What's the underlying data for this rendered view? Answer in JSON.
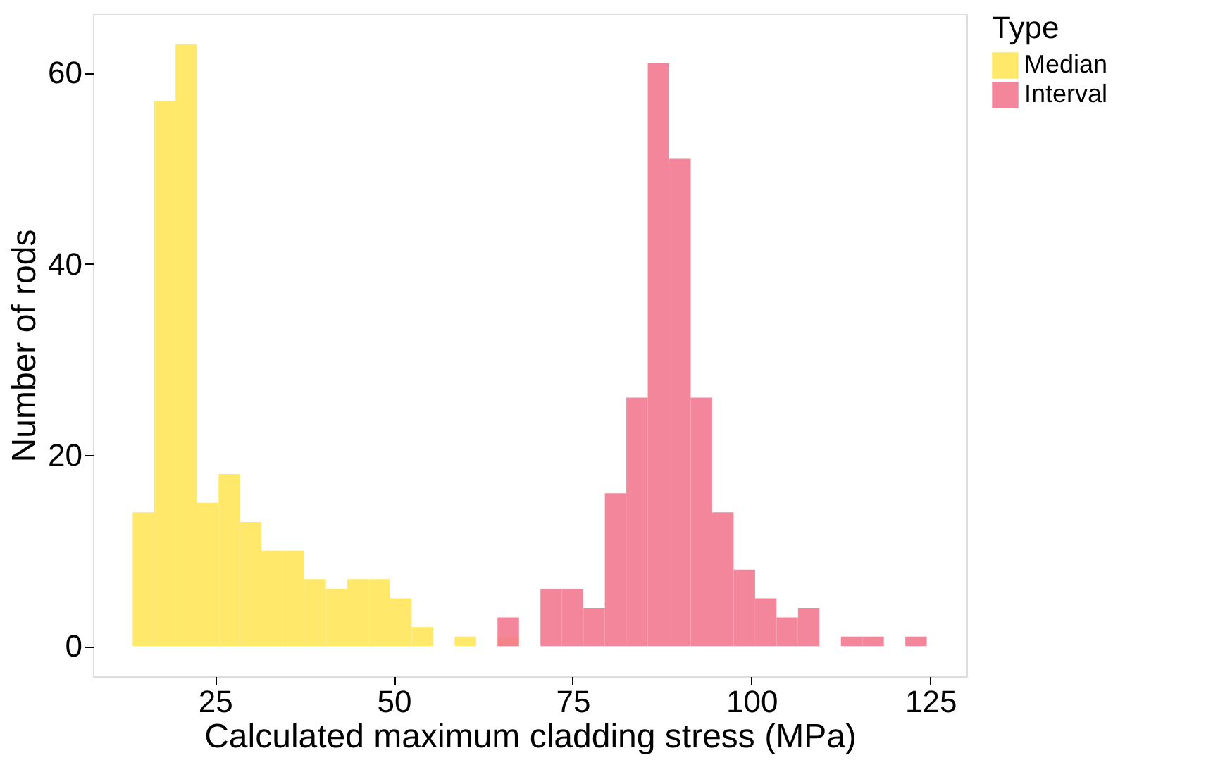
{
  "chart_data": {
    "type": "histogram",
    "xlabel": "Calculated maximum cladding stress (MPa)",
    "ylabel": "Number of rods",
    "legend_title": "Type",
    "bins": [
      13.5,
      16.5,
      19.5,
      22.5,
      25.5,
      28.5,
      31.5,
      34.5,
      37.5,
      40.5,
      43.5,
      46.5,
      49.5,
      52.5,
      55.5,
      58.5,
      61.5,
      64.5,
      67.5,
      70.5,
      73.5,
      76.5,
      79.5,
      82.5,
      85.5,
      88.5,
      91.5,
      94.5,
      97.5,
      100.5,
      103.5,
      106.5,
      109.5,
      112.5,
      115.5,
      118.5,
      121.5,
      124.5
    ],
    "series": [
      {
        "name": "Median",
        "color": "#ffe55a",
        "values": [
          14,
          57,
          63,
          15,
          18,
          13,
          10,
          10,
          7,
          6,
          7,
          7,
          5,
          2,
          0,
          1,
          0,
          1,
          0,
          0,
          0,
          0,
          0,
          0,
          0,
          0,
          0,
          0,
          0,
          0,
          0,
          0,
          0,
          0,
          0,
          0,
          0
        ]
      },
      {
        "name": "Interval",
        "color": "#f27990",
        "values": [
          0,
          0,
          0,
          0,
          0,
          0,
          0,
          0,
          0,
          0,
          0,
          0,
          0,
          0,
          0,
          0,
          0,
          3,
          0,
          6,
          6,
          4,
          16,
          26,
          61,
          51,
          26,
          14,
          8,
          5,
          3,
          4,
          0,
          1,
          1,
          0,
          1
        ]
      }
    ],
    "xlim": [
      7.95,
      130.05
    ],
    "xticks": [
      25,
      50,
      75,
      100,
      125
    ],
    "ylim": [
      -3.15,
      66.15
    ],
    "yticks": [
      0,
      20,
      40,
      60
    ],
    "grid": false,
    "legend": "right"
  }
}
